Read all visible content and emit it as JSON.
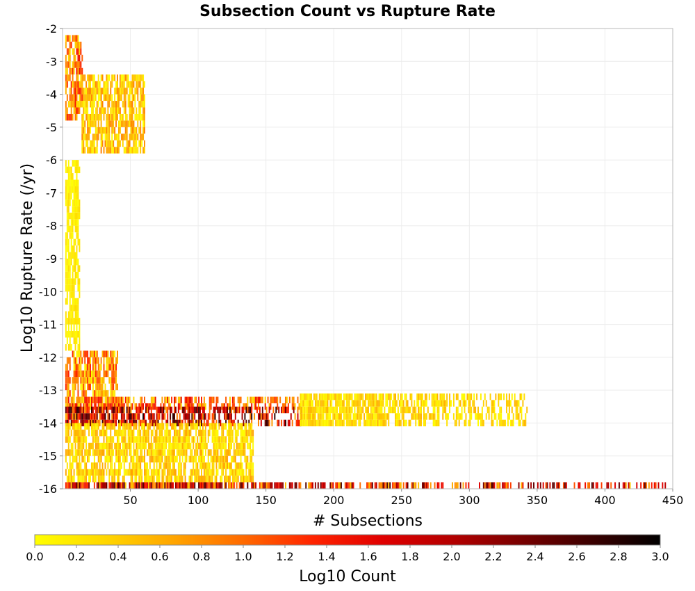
{
  "chart_data": {
    "type": "heatmap",
    "title": "Subsection Count vs Rupture Rate",
    "xlabel": "# Subsections",
    "ylabel": "Log10 Rupture Rate (/yr)",
    "colorbar_label": "Log10 Count",
    "xlim": [
      0,
      450
    ],
    "ylim": [
      -16,
      -2
    ],
    "x_ticks": [
      50,
      100,
      150,
      200,
      250,
      300,
      350,
      400,
      450
    ],
    "y_ticks": [
      -2,
      -3,
      -4,
      -5,
      -6,
      -7,
      -8,
      -9,
      -10,
      -11,
      -12,
      -13,
      -14,
      -15,
      -16
    ],
    "colorbar_ticks": [
      "0.0",
      "0.2",
      "0.4",
      "0.6",
      "0.8",
      "1.0",
      "1.2",
      "1.4",
      "1.6",
      "1.8",
      "2.0",
      "2.2",
      "2.4",
      "2.6",
      "2.8",
      "3.0"
    ],
    "colorbar_range": [
      0,
      3
    ],
    "colormap": [
      "#ffff00",
      "#ffd700",
      "#ffa500",
      "#ff6a00",
      "#ff2400",
      "#e00000",
      "#b40000",
      "#780000",
      "#3c0000",
      "#000000"
    ],
    "grid": true,
    "bin_height": 0.2,
    "clusters": [
      {
        "x": [
          2,
          14
        ],
        "y": [
          -4.8,
          -2.2
        ],
        "v": [
          0.2,
          1.5
        ]
      },
      {
        "x": [
          14,
          60
        ],
        "y": [
          -5.8,
          -3.4
        ],
        "v": [
          0.0,
          0.9
        ]
      },
      {
        "x": [
          2,
          12
        ],
        "y": [
          -11.8,
          -6.0
        ],
        "v": [
          0.0,
          0.3
        ]
      },
      {
        "x": [
          2,
          40
        ],
        "y": [
          -13.2,
          -11.8
        ],
        "v": [
          0.0,
          1.4
        ]
      },
      {
        "x": [
          2,
          175
        ],
        "y": [
          -13.6,
          -13.2
        ],
        "v": [
          0.2,
          1.6
        ]
      },
      {
        "x": [
          2,
          175
        ],
        "y": [
          -14.1,
          -13.6
        ],
        "v": [
          0.6,
          2.8
        ]
      },
      {
        "x": [
          175,
          345
        ],
        "y": [
          -14.1,
          -13.2
        ],
        "v": [
          0.0,
          0.6
        ]
      },
      {
        "x": [
          2,
          140
        ],
        "y": [
          -15.8,
          -14.1
        ],
        "v": [
          0.0,
          0.7
        ]
      },
      {
        "x": [
          2,
          445
        ],
        "y": [
          -16.0,
          -15.8
        ],
        "v": [
          0.4,
          2.6
        ]
      }
    ]
  }
}
